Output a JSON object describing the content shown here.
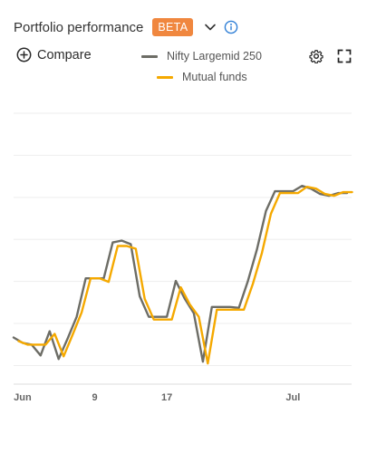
{
  "header": {
    "title": "Portfolio performance",
    "badge": "BETA"
  },
  "compare": {
    "label": "Compare"
  },
  "icons": {
    "dropdown": "chevron-down-icon",
    "info": "info-icon",
    "compare": "plus-circle-icon",
    "settings": "gear-icon",
    "fullscreen": "fullscreen-icon"
  },
  "colors": {
    "badge": "#f0873f",
    "info": "#2f7fd6",
    "nifty": "#6d6d66",
    "mutual": "#f5a900",
    "grid": "#eeeeee"
  },
  "chart_data": {
    "type": "line",
    "title": "",
    "xlabel": "",
    "ylabel": "",
    "grid": true,
    "legend": "top",
    "x_ticks": [
      {
        "label": "Jun",
        "index": 1
      },
      {
        "label": "9",
        "index": 9
      },
      {
        "label": "17",
        "index": 17
      },
      {
        "label": "Jul",
        "index": 31
      }
    ],
    "series": [
      {
        "name": "Nifty Largemid 250",
        "values": [
          15.0,
          14.4,
          14.2,
          13.0,
          15.7,
          12.6,
          14.9,
          17.3,
          21.6,
          21.6,
          21.6,
          25.6,
          25.8,
          25.4,
          19.6,
          17.3,
          17.3,
          17.3,
          21.3,
          19.3,
          17.7,
          12.3,
          18.4,
          18.4,
          18.4,
          18.3,
          21.3,
          24.8,
          29.1,
          31.3,
          31.3,
          31.3,
          31.9,
          31.6,
          31.0,
          30.8,
          31.1,
          31.1
        ]
      },
      {
        "name": "Mutual funds",
        "values": [
          14.6,
          14.2,
          14.2,
          14.2,
          15.4,
          12.9,
          15.3,
          17.8,
          21.6,
          21.6,
          21.2,
          25.2,
          25.2,
          24.9,
          19.3,
          17.0,
          17.0,
          17.0,
          20.6,
          18.7,
          17.3,
          12.1,
          18.1,
          18.1,
          18.1,
          18.1,
          21.0,
          24.4,
          28.8,
          31.1,
          31.1,
          31.1,
          31.8,
          31.6,
          31.0,
          30.8,
          31.2,
          31.2
        ]
      }
    ]
  }
}
